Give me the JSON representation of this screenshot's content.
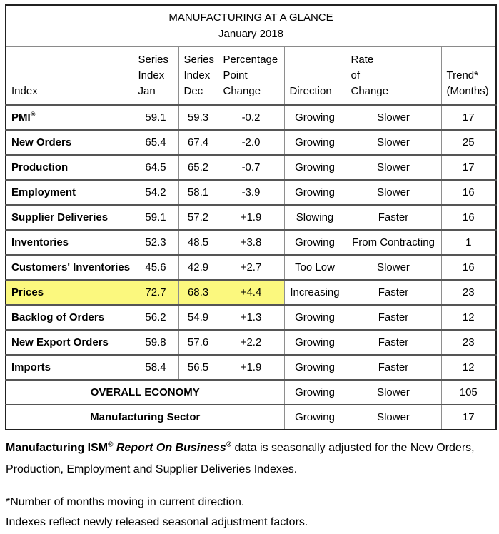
{
  "table": {
    "title": "MANUFACTURING AT A GLANCE",
    "subtitle": "January 2018",
    "highlight_color": "#fbf87e",
    "columns": [
      "Index",
      "Series\nIndex\nJan",
      "Series\nIndex\nDec",
      "Percentage\nPoint\nChange",
      "Direction",
      "Rate\nof\nChange",
      "Trend*\n(Months)"
    ],
    "rows": [
      {
        "label": "PMI",
        "label_sup": "®",
        "jan": "59.1",
        "dec": "59.3",
        "change": "-0.2",
        "direction": "Growing",
        "rate": "Slower",
        "trend": "17",
        "highlight": false
      },
      {
        "label": "New Orders",
        "label_sup": "",
        "jan": "65.4",
        "dec": "67.4",
        "change": "-2.0",
        "direction": "Growing",
        "rate": "Slower",
        "trend": "25",
        "highlight": false
      },
      {
        "label": "Production",
        "label_sup": "",
        "jan": "64.5",
        "dec": "65.2",
        "change": "-0.7",
        "direction": "Growing",
        "rate": "Slower",
        "trend": "17",
        "highlight": false
      },
      {
        "label": "Employment",
        "label_sup": "",
        "jan": "54.2",
        "dec": "58.1",
        "change": "-3.9",
        "direction": "Growing",
        "rate": "Slower",
        "trend": "16",
        "highlight": false
      },
      {
        "label": "Supplier Deliveries",
        "label_sup": "",
        "jan": "59.1",
        "dec": "57.2",
        "change": "+1.9",
        "direction": "Slowing",
        "rate": "Faster",
        "trend": "16",
        "highlight": false
      },
      {
        "label": "Inventories",
        "label_sup": "",
        "jan": "52.3",
        "dec": "48.5",
        "change": "+3.8",
        "direction": "Growing",
        "rate": "From Contracting",
        "trend": "1",
        "highlight": false
      },
      {
        "label": "Customers' Inventories",
        "label_sup": "",
        "jan": "45.6",
        "dec": "42.9",
        "change": "+2.7",
        "direction": "Too Low",
        "rate": "Slower",
        "trend": "16",
        "highlight": false
      },
      {
        "label": "Prices",
        "label_sup": "",
        "jan": "72.7",
        "dec": "68.3",
        "change": "+4.4",
        "direction": "Increasing",
        "rate": "Faster",
        "trend": "23",
        "highlight": true
      },
      {
        "label": "Backlog of Orders",
        "label_sup": "",
        "jan": "56.2",
        "dec": "54.9",
        "change": "+1.3",
        "direction": "Growing",
        "rate": "Faster",
        "trend": "12",
        "highlight": false
      },
      {
        "label": "New Export Orders",
        "label_sup": "",
        "jan": "59.8",
        "dec": "57.6",
        "change": "+2.2",
        "direction": "Growing",
        "rate": "Faster",
        "trend": "23",
        "highlight": false
      },
      {
        "label": "Imports",
        "label_sup": "",
        "jan": "58.4",
        "dec": "56.5",
        "change": "+1.9",
        "direction": "Growing",
        "rate": "Faster",
        "trend": "12",
        "highlight": false
      }
    ],
    "summary_rows": [
      {
        "label": "OVERALL ECONOMY",
        "direction": "Growing",
        "rate": "Slower",
        "trend": "105"
      },
      {
        "label": "Manufacturing Sector",
        "direction": "Growing",
        "rate": "Slower",
        "trend": "17"
      }
    ]
  },
  "footnotes": {
    "note1_segments": [
      {
        "text": "Manufacturing ISM",
        "bold": true,
        "italic": false,
        "sup": false
      },
      {
        "text": "®",
        "bold": true,
        "italic": false,
        "sup": true
      },
      {
        "text": " ",
        "bold": true,
        "italic": false,
        "sup": false
      },
      {
        "text": "Report On Business",
        "bold": true,
        "italic": true,
        "sup": false
      },
      {
        "text": "®",
        "bold": true,
        "italic": true,
        "sup": true
      },
      {
        "text": " data is seasonally adjusted for the New Orders, Production, Employment and Supplier Deliveries Indexes.",
        "bold": false,
        "italic": false,
        "sup": false
      }
    ],
    "note2": "*Number of months moving in current direction.",
    "note3": "Indexes reflect newly released seasonal adjustment factors."
  }
}
